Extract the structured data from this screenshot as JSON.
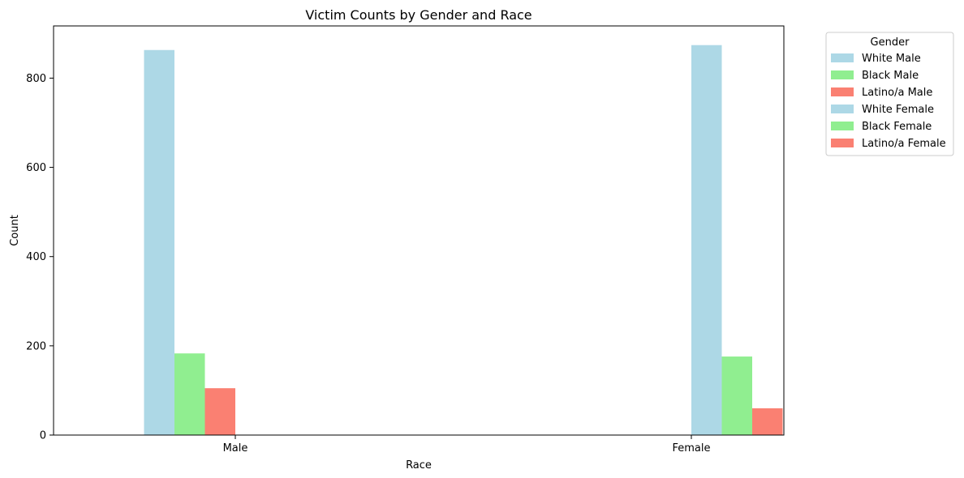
{
  "chart_data": {
    "type": "bar",
    "title": "Victim Counts by Gender and Race",
    "xlabel": "Race",
    "ylabel": "Count",
    "categories": [
      "Male",
      "Female"
    ],
    "ylim": [
      0,
      917
    ],
    "yticks": [
      0,
      200,
      400,
      600,
      800
    ],
    "legend": {
      "title": "Gender",
      "placement": "outside-right-top"
    },
    "series": [
      {
        "name": "White Male",
        "color": "#add8e6",
        "values": [
          863,
          0
        ]
      },
      {
        "name": "Black Male",
        "color": "#90ee90",
        "values": [
          183,
          0
        ]
      },
      {
        "name": "Latino/a Male",
        "color": "#fa8072",
        "values": [
          105,
          0
        ]
      },
      {
        "name": "White Female",
        "color": "#add8e6",
        "values": [
          0,
          874
        ]
      },
      {
        "name": "Black Female",
        "color": "#90ee90",
        "values": [
          0,
          176
        ]
      },
      {
        "name": "Latino/a Female",
        "color": "#fa8072",
        "values": [
          0,
          60
        ]
      }
    ]
  }
}
